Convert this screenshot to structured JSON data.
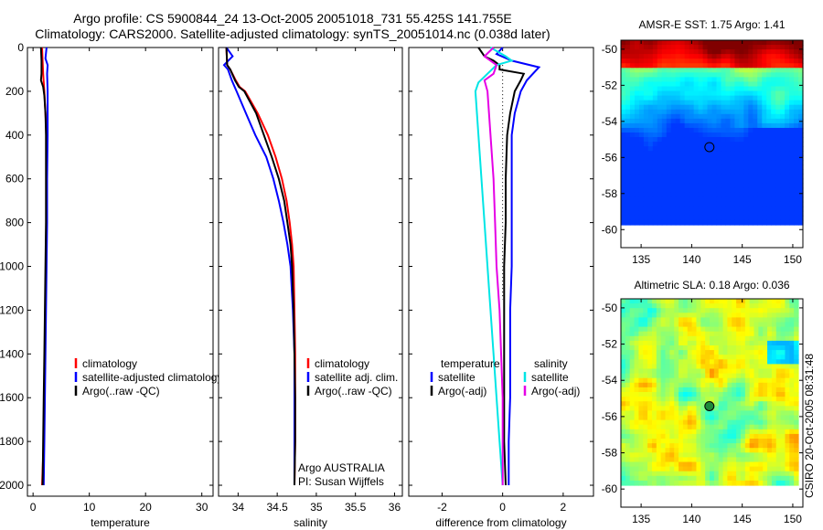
{
  "header": {
    "line1": "Argo profile: CS 5900844_24 13-Oct-2005 20051018_731 55.425S 141.755E",
    "line2": "Climatology: CARS2000. Satellite-adjusted climatology: synTS_20051014.nc (0.038d later)"
  },
  "stamp": "CSIRO 20-Oct-2005 08:31:48",
  "chart_data": [
    {
      "type": "line",
      "xlabel": "temperature",
      "ylabel": "",
      "xlim": [
        -1,
        32
      ],
      "ylim": [
        2050,
        0
      ],
      "y_reversed": true,
      "xticks": [
        "0",
        "10",
        "20",
        "30"
      ],
      "yticks": [
        "0",
        "200",
        "400",
        "600",
        "800",
        "1000",
        "1200",
        "1400",
        "1600",
        "1800",
        "2000"
      ],
      "legend": [
        "climatology",
        "satellite-adjusted climatology",
        "Argo(..raw -QC)"
      ],
      "series": [
        {
          "name": "climatology",
          "color": "#ff0000",
          "points": [
            [
              1.6,
              0
            ],
            [
              1.7,
              60
            ],
            [
              1.8,
              120
            ],
            [
              2.0,
              200
            ],
            [
              2.2,
              300
            ],
            [
              2.4,
              400
            ],
            [
              2.4,
              600
            ],
            [
              2.4,
              800
            ],
            [
              2.3,
              1000
            ],
            [
              2.2,
              1200
            ],
            [
              2.1,
              1400
            ],
            [
              2.0,
              1600
            ],
            [
              1.9,
              1800
            ],
            [
              1.6,
              2000
            ]
          ]
        },
        {
          "name": "satellite-adjusted climatology",
          "color": "#0000ff",
          "points": [
            [
              2.4,
              0
            ],
            [
              2.2,
              50
            ],
            [
              2.6,
              80
            ],
            [
              2.5,
              120
            ],
            [
              2.6,
              200
            ],
            [
              2.6,
              300
            ],
            [
              2.6,
              400
            ],
            [
              2.5,
              600
            ],
            [
              2.5,
              800
            ],
            [
              2.4,
              1000
            ],
            [
              2.3,
              1200
            ],
            [
              2.2,
              1400
            ],
            [
              2.1,
              1600
            ],
            [
              2.0,
              1800
            ],
            [
              1.9,
              2000
            ]
          ]
        },
        {
          "name": "Argo(..raw -QC)",
          "color": "#000000",
          "points": [
            [
              1.4,
              0
            ],
            [
              1.5,
              60
            ],
            [
              1.5,
              120
            ],
            [
              1.4,
              150
            ],
            [
              1.8,
              180
            ],
            [
              2.0,
              220
            ],
            [
              2.2,
              300
            ],
            [
              2.3,
              400
            ],
            [
              2.3,
              600
            ],
            [
              2.3,
              800
            ],
            [
              2.2,
              1000
            ],
            [
              2.1,
              1200
            ],
            [
              2.0,
              1400
            ],
            [
              1.9,
              1600
            ],
            [
              1.8,
              1800
            ],
            [
              1.7,
              2000
            ]
          ]
        }
      ]
    },
    {
      "type": "line",
      "xlabel": "salinity",
      "ylabel": "",
      "xlim": [
        33.75,
        36.1
      ],
      "ylim": [
        2050,
        0
      ],
      "y_reversed": true,
      "xticks": [
        "34",
        "34.5",
        "35",
        "35.5",
        "36"
      ],
      "legend": [
        "climatology",
        "satellite adj. clim.",
        "Argo(..raw -QC)"
      ],
      "annotation": [
        "Argo AUSTRALIA",
        "PI: Susan Wijffels"
      ],
      "series": [
        {
          "name": "climatology",
          "color": "#ff0000",
          "points": [
            [
              33.85,
              0
            ],
            [
              33.86,
              80
            ],
            [
              33.9,
              100
            ],
            [
              33.97,
              150
            ],
            [
              34.02,
              180
            ],
            [
              34.09,
              200
            ],
            [
              34.25,
              300
            ],
            [
              34.38,
              400
            ],
            [
              34.48,
              500
            ],
            [
              34.56,
              600
            ],
            [
              34.62,
              700
            ],
            [
              34.66,
              800
            ],
            [
              34.69,
              900
            ],
            [
              34.71,
              1000
            ],
            [
              34.72,
              1200
            ],
            [
              34.73,
              1400
            ],
            [
              34.73,
              1600
            ],
            [
              34.73,
              1800
            ],
            [
              34.72,
              2000
            ]
          ]
        },
        {
          "name": "satellite adj. clim.",
          "color": "#0000ff",
          "points": [
            [
              33.85,
              0
            ],
            [
              33.93,
              40
            ],
            [
              33.82,
              80
            ],
            [
              33.87,
              100
            ],
            [
              33.92,
              150
            ],
            [
              33.98,
              200
            ],
            [
              34.1,
              300
            ],
            [
              34.22,
              400
            ],
            [
              34.36,
              500
            ],
            [
              34.45,
              600
            ],
            [
              34.52,
              700
            ],
            [
              34.58,
              800
            ],
            [
              34.63,
              900
            ],
            [
              34.67,
              1000
            ],
            [
              34.7,
              1200
            ],
            [
              34.72,
              1400
            ],
            [
              34.72,
              1600
            ],
            [
              34.72,
              1800
            ],
            [
              34.72,
              2000
            ]
          ]
        },
        {
          "name": "Argo(..raw -QC)",
          "color": "#000000",
          "points": [
            [
              33.85,
              0
            ],
            [
              33.86,
              80
            ],
            [
              33.9,
              100
            ],
            [
              33.96,
              150
            ],
            [
              34.01,
              180
            ],
            [
              34.08,
              200
            ],
            [
              34.23,
              300
            ],
            [
              34.33,
              400
            ],
            [
              34.43,
              500
            ],
            [
              34.52,
              600
            ],
            [
              34.59,
              700
            ],
            [
              34.63,
              800
            ],
            [
              34.67,
              900
            ],
            [
              34.69,
              1000
            ],
            [
              34.71,
              1200
            ],
            [
              34.72,
              1400
            ],
            [
              34.73,
              1600
            ],
            [
              34.73,
              1800
            ],
            [
              34.72,
              2000
            ]
          ]
        }
      ]
    },
    {
      "type": "line",
      "xlabel": "difference from climatology",
      "ylabel": "",
      "xlim": [
        -3.1,
        3.0
      ],
      "ylim": [
        2050,
        0
      ],
      "y_reversed": true,
      "xticks": [
        "-2",
        "0",
        "2"
      ],
      "legend": [
        "temperature",
        "satellite",
        "Argo(-adj)",
        "salinity",
        "satellite",
        "Argo(-adj)"
      ],
      "series": [
        {
          "name": "temperature satellite",
          "color": "#0000ff",
          "points": [
            [
              0.0,
              0
            ],
            [
              -0.2,
              30
            ],
            [
              0.3,
              60
            ],
            [
              1.2,
              90
            ],
            [
              0.8,
              150
            ],
            [
              0.6,
              200
            ],
            [
              0.4,
              300
            ],
            [
              0.3,
              400
            ],
            [
              0.3,
              600
            ],
            [
              0.3,
              800
            ],
            [
              0.3,
              1000
            ],
            [
              0.25,
              1200
            ],
            [
              0.25,
              1400
            ],
            [
              0.25,
              1600
            ],
            [
              0.2,
              1800
            ],
            [
              0.2,
              2000
            ]
          ]
        },
        {
          "name": "temperature Argo(-adj)",
          "color": "#000000",
          "points": [
            [
              -0.8,
              0
            ],
            [
              -0.6,
              40
            ],
            [
              -0.3,
              60
            ],
            [
              -0.1,
              80
            ],
            [
              -0.1,
              100
            ],
            [
              0.7,
              120
            ],
            [
              0.6,
              150
            ],
            [
              0.4,
              200
            ],
            [
              0.25,
              300
            ],
            [
              0.15,
              400
            ],
            [
              0.1,
              600
            ],
            [
              0.1,
              800
            ],
            [
              0.05,
              1000
            ],
            [
              0.05,
              1200
            ],
            [
              0.05,
              1400
            ],
            [
              0.05,
              1600
            ],
            [
              0.05,
              1800
            ],
            [
              0.1,
              2000
            ]
          ]
        },
        {
          "name": "salinity satellite",
          "color": "#00e5e5",
          "points": [
            [
              -0.4,
              0
            ],
            [
              0.1,
              40
            ],
            [
              0.3,
              60
            ],
            [
              -0.2,
              80
            ],
            [
              -0.8,
              160
            ],
            [
              -0.9,
              200
            ],
            [
              -0.8,
              400
            ],
            [
              -0.7,
              600
            ],
            [
              -0.6,
              800
            ],
            [
              -0.5,
              1000
            ],
            [
              -0.4,
              1200
            ],
            [
              -0.3,
              1400
            ],
            [
              -0.2,
              1600
            ],
            [
              -0.1,
              1800
            ],
            [
              0.0,
              2000
            ]
          ]
        },
        {
          "name": "salinity Argo(-adj)",
          "color": "#e500e5",
          "points": [
            [
              -0.3,
              0
            ],
            [
              -0.6,
              40
            ],
            [
              -0.2,
              80
            ],
            [
              -0.3,
              120
            ],
            [
              -0.6,
              150
            ],
            [
              -0.5,
              200
            ],
            [
              -0.4,
              400
            ],
            [
              -0.3,
              600
            ],
            [
              -0.25,
              800
            ],
            [
              -0.2,
              1000
            ],
            [
              -0.1,
              1200
            ],
            [
              -0.05,
              1400
            ],
            [
              0.0,
              1600
            ],
            [
              0.0,
              1800
            ],
            [
              0.0,
              2000
            ]
          ]
        }
      ]
    },
    {
      "type": "heatmap",
      "title": "AMSR-E SST: 1.75 Argo: 1.41",
      "xlim": [
        133,
        151
      ],
      "ylim": [
        -61,
        -49.5
      ],
      "xticks": [
        "135",
        "140",
        "145",
        "150"
      ],
      "yticks": [
        "-50",
        "-52",
        "-54",
        "-56",
        "-58",
        "-60"
      ],
      "marker": {
        "x": 141.755,
        "y": -55.425,
        "fill": "none"
      }
    },
    {
      "type": "heatmap",
      "title": "Altimetric SLA: 0.18 Argo: 0.036",
      "xlim": [
        133,
        151
      ],
      "ylim": [
        -61,
        -49.5
      ],
      "xticks": [
        "135",
        "140",
        "145",
        "150"
      ],
      "yticks": [
        "-50",
        "-52",
        "-54",
        "-56",
        "-58",
        "-60"
      ],
      "marker": {
        "x": 141.755,
        "y": -55.425,
        "fill": "#1e8a3a"
      }
    }
  ]
}
